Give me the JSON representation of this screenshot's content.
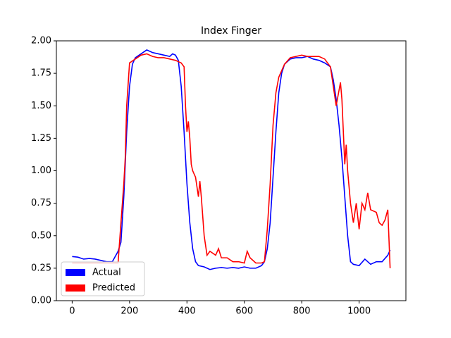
{
  "chart_data": {
    "type": "line",
    "title": "Index Finger",
    "xlim": [
      -55,
      1163
    ],
    "ylim": [
      0,
      2
    ],
    "xticks": [
      0,
      200,
      400,
      600,
      800,
      1000
    ],
    "yticks": [
      {
        "value": 0,
        "label": "0.00"
      },
      {
        "value": 0.25,
        "label": "0.25"
      },
      {
        "value": 0.5,
        "label": "0.50"
      },
      {
        "value": 0.75,
        "label": "0.75"
      },
      {
        "value": 1,
        "label": "1.00"
      },
      {
        "value": 1.25,
        "label": "1.25"
      },
      {
        "value": 1.5,
        "label": "1.50"
      },
      {
        "value": 1.75,
        "label": "1.75"
      },
      {
        "value": 2,
        "label": "2.00"
      }
    ],
    "grid": false,
    "legend": "lower left",
    "series": [
      {
        "name": "Actual",
        "color": "#0000ff",
        "x": [
          0,
          20,
          40,
          60,
          80,
          100,
          120,
          140,
          160,
          170,
          180,
          190,
          200,
          210,
          220,
          240,
          260,
          280,
          300,
          320,
          340,
          350,
          360,
          370,
          380,
          390,
          400,
          410,
          420,
          430,
          440,
          460,
          480,
          500,
          520,
          540,
          560,
          580,
          600,
          620,
          640,
          660,
          670,
          680,
          690,
          700,
          710,
          720,
          730,
          740,
          760,
          780,
          800,
          820,
          840,
          860,
          880,
          900,
          910,
          920,
          930,
          940,
          950,
          960,
          970,
          980,
          1000,
          1020,
          1040,
          1060,
          1080,
          1100,
          1108
        ],
        "values": [
          0.34,
          0.335,
          0.32,
          0.325,
          0.32,
          0.31,
          0.3,
          0.3,
          0.38,
          0.45,
          0.8,
          1.3,
          1.65,
          1.82,
          1.87,
          1.9,
          1.93,
          1.91,
          1.9,
          1.89,
          1.88,
          1.9,
          1.89,
          1.85,
          1.65,
          1.3,
          0.9,
          0.6,
          0.4,
          0.3,
          0.27,
          0.26,
          0.24,
          0.25,
          0.255,
          0.25,
          0.255,
          0.25,
          0.26,
          0.25,
          0.25,
          0.27,
          0.3,
          0.4,
          0.6,
          0.95,
          1.3,
          1.6,
          1.75,
          1.82,
          1.86,
          1.87,
          1.87,
          1.88,
          1.86,
          1.85,
          1.83,
          1.8,
          1.7,
          1.55,
          1.35,
          1.1,
          0.8,
          0.5,
          0.3,
          0.28,
          0.27,
          0.32,
          0.28,
          0.3,
          0.3,
          0.35,
          0.39
        ]
      },
      {
        "name": "Predicted",
        "color": "#ff0000",
        "x": [
          0,
          40,
          80,
          120,
          160,
          170,
          180,
          185,
          190,
          200,
          220,
          240,
          260,
          280,
          300,
          320,
          340,
          360,
          380,
          390,
          395,
          400,
          405,
          410,
          415,
          420,
          430,
          440,
          445,
          450,
          460,
          470,
          480,
          500,
          510,
          520,
          540,
          560,
          580,
          600,
          610,
          620,
          640,
          660,
          670,
          680,
          690,
          700,
          710,
          720,
          740,
          760,
          780,
          800,
          820,
          840,
          860,
          880,
          900,
          910,
          920,
          930,
          935,
          940,
          950,
          955,
          960,
          970,
          980,
          990,
          1000,
          1010,
          1020,
          1030,
          1040,
          1060,
          1070,
          1080,
          1090,
          1100,
          1108
        ],
        "values": [
          0.29,
          0.29,
          0.29,
          0.29,
          0.29,
          0.6,
          0.9,
          1.1,
          1.5,
          1.83,
          1.86,
          1.89,
          1.9,
          1.88,
          1.87,
          1.87,
          1.86,
          1.85,
          1.83,
          1.8,
          1.5,
          1.3,
          1.38,
          1.25,
          1.05,
          1.0,
          0.95,
          0.8,
          0.92,
          0.8,
          0.5,
          0.35,
          0.38,
          0.35,
          0.4,
          0.33,
          0.33,
          0.3,
          0.3,
          0.29,
          0.38,
          0.33,
          0.29,
          0.29,
          0.3,
          0.55,
          0.9,
          1.35,
          1.6,
          1.72,
          1.82,
          1.87,
          1.88,
          1.89,
          1.88,
          1.88,
          1.88,
          1.86,
          1.8,
          1.65,
          1.5,
          1.62,
          1.68,
          1.55,
          1.05,
          1.2,
          1.0,
          0.75,
          0.6,
          0.75,
          0.55,
          0.75,
          0.7,
          0.83,
          0.7,
          0.68,
          0.6,
          0.58,
          0.62,
          0.7,
          0.25
        ]
      }
    ]
  }
}
